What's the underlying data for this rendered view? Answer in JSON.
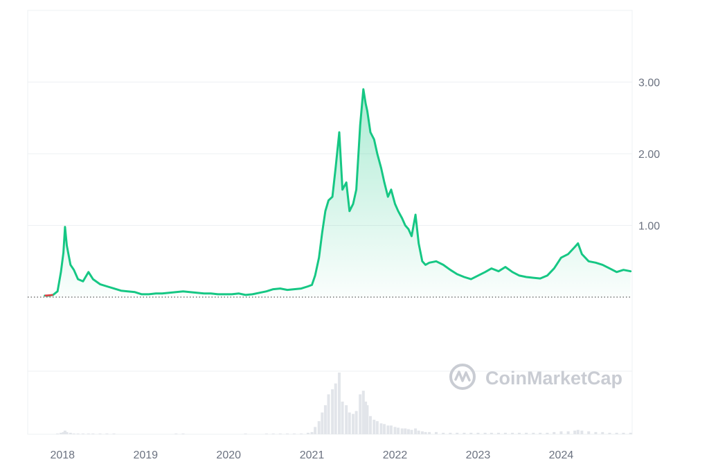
{
  "chart_data": {
    "type": "area",
    "title": "",
    "xlabel": "",
    "ylabel": "",
    "x_ticks": [
      "2018",
      "2019",
      "2020",
      "2021",
      "2022",
      "2023",
      "2024"
    ],
    "y_ticks": [
      "1.00",
      "2.00",
      "3.00"
    ],
    "ylim": [
      0,
      4
    ],
    "grid": true,
    "legend": "none",
    "baseline_dotted": true,
    "watermark": "CoinMarketCap",
    "colors": {
      "line": "#16c784",
      "start_segment": "#ea3943",
      "volume": "#e2e5ea",
      "grid": "#eef0f3"
    },
    "series": [
      {
        "x": [
          "2017-10-15",
          "2017-11-01",
          "2017-11-20",
          "2017-12-10",
          "2017-12-25",
          "2018-01-05",
          "2018-01-12",
          "2018-01-20",
          "2018-02-05",
          "2018-02-20",
          "2018-03-10",
          "2018-04-01",
          "2018-04-25",
          "2018-05-15",
          "2018-06-15",
          "2018-07-15",
          "2018-08-15",
          "2018-09-15",
          "2018-10-15",
          "2018-11-15",
          "2018-12-15",
          "2019-01-15",
          "2019-02-15",
          "2019-03-15",
          "2019-04-15",
          "2019-05-15",
          "2019-06-15",
          "2019-07-15",
          "2019-08-15",
          "2019-09-15",
          "2019-10-15",
          "2019-11-15",
          "2019-12-15",
          "2020-01-15",
          "2020-02-15",
          "2020-03-15",
          "2020-04-15",
          "2020-05-15",
          "2020-06-15",
          "2020-07-15",
          "2020-08-15",
          "2020-09-15",
          "2020-10-15",
          "2020-11-15",
          "2020-12-15",
          "2021-01-01",
          "2021-01-15",
          "2021-02-01",
          "2021-02-15",
          "2021-03-01",
          "2021-03-15",
          "2021-04-01",
          "2021-04-15",
          "2021-05-01",
          "2021-05-15",
          "2021-06-01",
          "2021-06-15",
          "2021-07-01",
          "2021-07-15",
          "2021-08-01",
          "2021-08-15",
          "2021-08-25",
          "2021-09-01",
          "2021-09-15",
          "2021-10-01",
          "2021-10-15",
          "2021-11-01",
          "2021-11-15",
          "2021-12-01",
          "2021-12-15",
          "2022-01-01",
          "2022-01-15",
          "2022-02-01",
          "2022-02-15",
          "2022-03-01",
          "2022-03-15",
          "2022-04-01",
          "2022-04-15",
          "2022-05-01",
          "2022-05-15",
          "2022-06-01",
          "2022-07-01",
          "2022-08-01",
          "2022-09-01",
          "2022-10-01",
          "2022-11-01",
          "2022-12-01",
          "2023-01-01",
          "2023-02-01",
          "2023-03-01",
          "2023-04-01",
          "2023-05-01",
          "2023-06-01",
          "2023-07-01",
          "2023-08-01",
          "2023-09-01",
          "2023-10-01",
          "2023-11-01",
          "2023-12-01",
          "2024-01-01",
          "2024-02-01",
          "2024-03-01",
          "2024-03-15",
          "2024-04-01",
          "2024-05-01",
          "2024-06-01",
          "2024-07-01",
          "2024-08-01",
          "2024-09-01",
          "2024-10-01",
          "2024-11-01"
        ],
        "values": [
          0.02,
          0.02,
          0.03,
          0.08,
          0.35,
          0.62,
          0.98,
          0.72,
          0.45,
          0.38,
          0.25,
          0.22,
          0.35,
          0.25,
          0.18,
          0.15,
          0.12,
          0.09,
          0.08,
          0.07,
          0.04,
          0.04,
          0.05,
          0.05,
          0.06,
          0.07,
          0.08,
          0.07,
          0.06,
          0.05,
          0.05,
          0.04,
          0.04,
          0.04,
          0.05,
          0.03,
          0.04,
          0.06,
          0.08,
          0.11,
          0.12,
          0.1,
          0.11,
          0.12,
          0.15,
          0.17,
          0.3,
          0.55,
          0.9,
          1.2,
          1.35,
          1.4,
          1.8,
          2.3,
          1.5,
          1.6,
          1.2,
          1.3,
          1.5,
          2.4,
          2.9,
          2.7,
          2.6,
          2.3,
          2.2,
          2.0,
          1.8,
          1.6,
          1.4,
          1.5,
          1.3,
          1.2,
          1.1,
          1.0,
          0.95,
          0.85,
          1.15,
          0.75,
          0.5,
          0.45,
          0.48,
          0.5,
          0.45,
          0.38,
          0.32,
          0.28,
          0.25,
          0.3,
          0.35,
          0.4,
          0.36,
          0.42,
          0.35,
          0.3,
          0.28,
          0.27,
          0.26,
          0.3,
          0.4,
          0.55,
          0.6,
          0.7,
          0.75,
          0.6,
          0.5,
          0.48,
          0.45,
          0.4,
          0.35,
          0.38,
          0.36
        ]
      }
    ],
    "volume": [
      0,
      0,
      0,
      1,
      2,
      3,
      5,
      3,
      2,
      1,
      1,
      1,
      1,
      1,
      1,
      1,
      1,
      0,
      0,
      0,
      0,
      0,
      0,
      0,
      0,
      1,
      1,
      0,
      0,
      0,
      0,
      0,
      0,
      0,
      0,
      1,
      0,
      0,
      1,
      1,
      1,
      1,
      1,
      1,
      2,
      3,
      10,
      18,
      30,
      40,
      55,
      62,
      70,
      85,
      45,
      40,
      30,
      28,
      32,
      55,
      60,
      45,
      40,
      25,
      20,
      18,
      15,
      14,
      12,
      12,
      10,
      9,
      8,
      8,
      7,
      6,
      8,
      5,
      4,
      3,
      3,
      3,
      2,
      2,
      2,
      2,
      2,
      2,
      2,
      2,
      2,
      2,
      2,
      2,
      2,
      2,
      2,
      2,
      3,
      4,
      4,
      5,
      6,
      5,
      4,
      3,
      3,
      2,
      2,
      2,
      2
    ]
  }
}
